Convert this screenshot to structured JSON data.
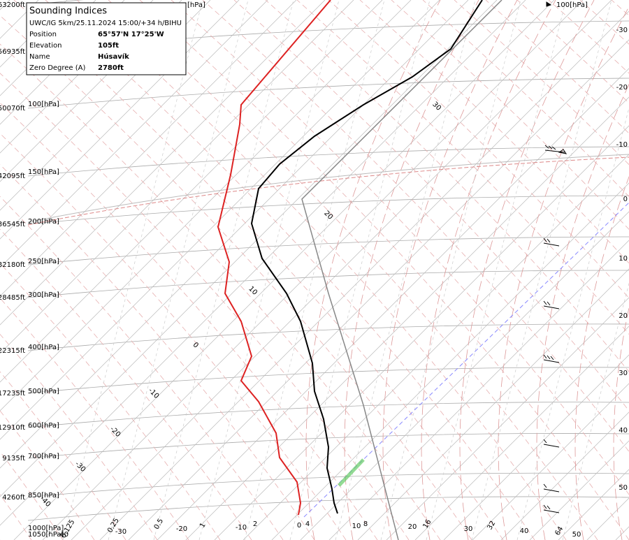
{
  "info": {
    "title": "Sounding Indices",
    "subtitle": "UWC/IG 5km/25.11.2024 15:00/+34 h/BIHU",
    "rows": [
      {
        "label": "Position",
        "value": "65°57'N 17°25'W"
      },
      {
        "label": "Elevation",
        "value": "105ft"
      },
      {
        "label": "Name",
        "value": "Húsavík"
      },
      {
        "label": "Zero Degree (A)",
        "value": "2780ft"
      }
    ]
  },
  "altitudes": [
    "63200ft",
    "56935ft",
    "50070ft",
    "42095ft",
    "36545ft",
    "32180ft",
    "28485ft",
    "22315ft",
    "17235ft",
    "12910ft",
    "9135ft",
    "4260ft"
  ],
  "pressures": [
    "[hPa]",
    "100[hPa]",
    "150[hPa]",
    "200[hPa]",
    "250[hPa]",
    "300[hPa]",
    "400[hPa]",
    "500[hPa]",
    "600[hPa]",
    "700[hPa]",
    "850[hPa]",
    "1000[hPa]",
    "1050[hPa]",
    "100[hPa]"
  ],
  "right_labels": [
    -30,
    -20,
    -10,
    0,
    10,
    20,
    30,
    40,
    50
  ],
  "bottom_labels": [
    0.125,
    0.25,
    0.5,
    -20,
    1,
    -10,
    2,
    0,
    4,
    10,
    8,
    20,
    16,
    30,
    32,
    40,
    64,
    50,
    -30,
    -40
  ],
  "isotherm_labels": [
    30,
    20,
    10,
    0,
    -10,
    -20,
    -30,
    -40
  ]
}
